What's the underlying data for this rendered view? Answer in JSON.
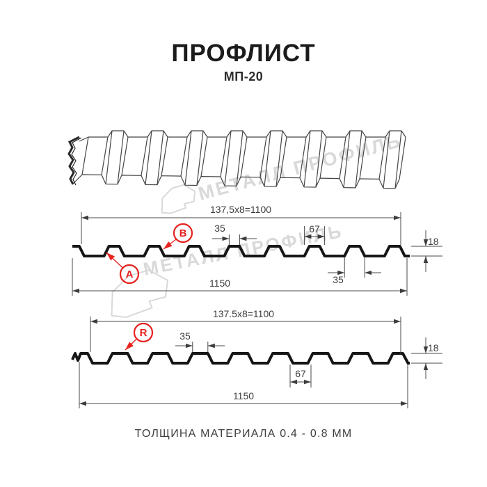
{
  "header": {
    "title": "ПРОФЛИСТ",
    "subtitle": "МП-20"
  },
  "footer": {
    "caption": "ТОЛЩИНА МАТЕРИАЛА 0.4 - 0.8 ММ"
  },
  "watermark": {
    "brand": "МЕТАЛЛ ПРОФИЛЬ"
  },
  "colors": {
    "accent": "#e5231f",
    "line": "#3f3f3f",
    "ink": "#171717",
    "watermark": "#d9d9d9"
  },
  "front_view": {
    "module_dim": "137,5x8=1100",
    "crest_top_width": "35",
    "crest_base_width": "67",
    "height": "18",
    "crest_bottom_width": "35",
    "overall_width": "1150",
    "label_a": "A",
    "label_b": "B"
  },
  "back_view": {
    "module_dim": "137.5x8=1100",
    "crest_top_width": "35",
    "valley_width": "67",
    "height": "18",
    "overall_width": "1150",
    "label_r": "R"
  }
}
